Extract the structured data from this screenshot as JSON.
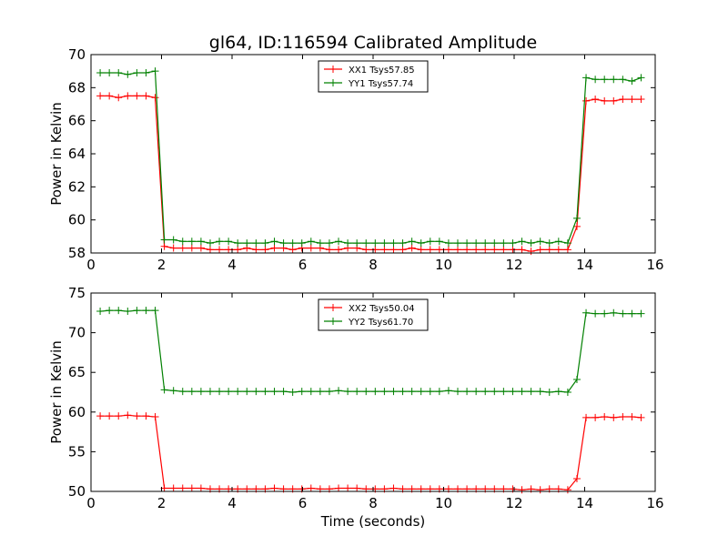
{
  "figure": {
    "title": "gl64, ID:116594 Calibrated Amplitude",
    "background": "#ffffff"
  },
  "chart_data": [
    {
      "type": "line",
      "xlabel": "",
      "ylabel": "Power in Kelvin",
      "xlim": [
        0,
        16
      ],
      "ylim": [
        58,
        70
      ],
      "xticks": [
        0,
        2,
        4,
        6,
        8,
        10,
        12,
        14,
        16
      ],
      "yticks": [
        58,
        60,
        62,
        64,
        66,
        68,
        70
      ],
      "grid": false,
      "legend_position": "top-center",
      "marker": "+",
      "x": [
        0.26,
        0.52,
        0.78,
        1.04,
        1.3,
        1.56,
        1.82,
        2.08,
        2.34,
        2.6,
        2.86,
        3.12,
        3.38,
        3.64,
        3.9,
        4.16,
        4.42,
        4.68,
        4.94,
        5.2,
        5.46,
        5.72,
        5.98,
        6.24,
        6.5,
        6.76,
        7.02,
        7.28,
        7.54,
        7.8,
        8.06,
        8.32,
        8.58,
        8.84,
        9.1,
        9.36,
        9.62,
        9.88,
        10.14,
        10.4,
        10.66,
        10.92,
        11.18,
        11.44,
        11.7,
        11.96,
        12.22,
        12.48,
        12.74,
        13.0,
        13.26,
        13.52,
        13.78,
        14.04,
        14.3,
        14.56,
        14.82,
        15.08,
        15.34,
        15.6
      ],
      "series": [
        {
          "name": "XX1 Tsys57.85",
          "color": "#ff0000",
          "values": [
            67.5,
            67.5,
            67.4,
            67.5,
            67.5,
            67.5,
            67.4,
            58.4,
            58.3,
            58.3,
            58.3,
            58.3,
            58.2,
            58.2,
            58.2,
            58.2,
            58.3,
            58.2,
            58.2,
            58.3,
            58.3,
            58.2,
            58.3,
            58.3,
            58.3,
            58.2,
            58.2,
            58.3,
            58.3,
            58.2,
            58.2,
            58.2,
            58.2,
            58.2,
            58.3,
            58.2,
            58.2,
            58.2,
            58.2,
            58.2,
            58.2,
            58.2,
            58.2,
            58.2,
            58.2,
            58.2,
            58.2,
            58.1,
            58.2,
            58.2,
            58.2,
            58.2,
            59.6,
            67.2,
            67.3,
            67.2,
            67.2,
            67.3,
            67.3,
            67.3
          ]
        },
        {
          "name": "YY1 Tsys57.74",
          "color": "#008000",
          "values": [
            68.9,
            68.9,
            68.9,
            68.8,
            68.9,
            68.9,
            69.0,
            58.8,
            58.8,
            58.7,
            58.7,
            58.7,
            58.6,
            58.7,
            58.7,
            58.6,
            58.6,
            58.6,
            58.6,
            58.7,
            58.6,
            58.6,
            58.6,
            58.7,
            58.6,
            58.6,
            58.7,
            58.6,
            58.6,
            58.6,
            58.6,
            58.6,
            58.6,
            58.6,
            58.7,
            58.6,
            58.7,
            58.7,
            58.6,
            58.6,
            58.6,
            58.6,
            58.6,
            58.6,
            58.6,
            58.6,
            58.7,
            58.6,
            58.7,
            58.6,
            58.7,
            58.6,
            60.1,
            68.6,
            68.5,
            68.5,
            68.5,
            68.5,
            68.4,
            68.6
          ]
        }
      ]
    },
    {
      "type": "line",
      "xlabel": "Time (seconds)",
      "ylabel": "Power in Kelvin",
      "xlim": [
        0,
        16
      ],
      "ylim": [
        50,
        75
      ],
      "xticks": [
        0,
        2,
        4,
        6,
        8,
        10,
        12,
        14,
        16
      ],
      "yticks": [
        50,
        55,
        60,
        65,
        70,
        75
      ],
      "grid": false,
      "legend_position": "top-center",
      "marker": "+",
      "x": [
        0.26,
        0.52,
        0.78,
        1.04,
        1.3,
        1.56,
        1.82,
        2.08,
        2.34,
        2.6,
        2.86,
        3.12,
        3.38,
        3.64,
        3.9,
        4.16,
        4.42,
        4.68,
        4.94,
        5.2,
        5.46,
        5.72,
        5.98,
        6.24,
        6.5,
        6.76,
        7.02,
        7.28,
        7.54,
        7.8,
        8.06,
        8.32,
        8.58,
        8.84,
        9.1,
        9.36,
        9.62,
        9.88,
        10.14,
        10.4,
        10.66,
        10.92,
        11.18,
        11.44,
        11.7,
        11.96,
        12.22,
        12.48,
        12.74,
        13.0,
        13.26,
        13.52,
        13.78,
        14.04,
        14.3,
        14.56,
        14.82,
        15.08,
        15.34,
        15.6
      ],
      "series": [
        {
          "name": "XX2 Tsys50.04",
          "color": "#ff0000",
          "values": [
            59.5,
            59.5,
            59.5,
            59.6,
            59.5,
            59.5,
            59.4,
            50.4,
            50.4,
            50.4,
            50.4,
            50.4,
            50.3,
            50.3,
            50.3,
            50.3,
            50.3,
            50.3,
            50.3,
            50.4,
            50.3,
            50.3,
            50.3,
            50.4,
            50.3,
            50.3,
            50.4,
            50.4,
            50.4,
            50.3,
            50.3,
            50.3,
            50.4,
            50.3,
            50.3,
            50.3,
            50.3,
            50.3,
            50.3,
            50.3,
            50.3,
            50.3,
            50.3,
            50.3,
            50.3,
            50.3,
            50.2,
            50.3,
            50.2,
            50.3,
            50.3,
            50.2,
            51.6,
            59.3,
            59.3,
            59.4,
            59.3,
            59.4,
            59.4,
            59.3
          ]
        },
        {
          "name": "YY2 Tsys61.70",
          "color": "#008000",
          "values": [
            72.7,
            72.8,
            72.8,
            72.7,
            72.8,
            72.8,
            72.8,
            62.8,
            62.7,
            62.6,
            62.6,
            62.6,
            62.6,
            62.6,
            62.6,
            62.6,
            62.6,
            62.6,
            62.6,
            62.6,
            62.6,
            62.5,
            62.6,
            62.6,
            62.6,
            62.6,
            62.7,
            62.6,
            62.6,
            62.6,
            62.6,
            62.6,
            62.6,
            62.6,
            62.6,
            62.6,
            62.6,
            62.6,
            62.7,
            62.6,
            62.6,
            62.6,
            62.6,
            62.6,
            62.6,
            62.6,
            62.6,
            62.6,
            62.6,
            62.5,
            62.6,
            62.5,
            64.1,
            72.5,
            72.4,
            72.4,
            72.5,
            72.4,
            72.4,
            72.4
          ]
        }
      ]
    }
  ]
}
